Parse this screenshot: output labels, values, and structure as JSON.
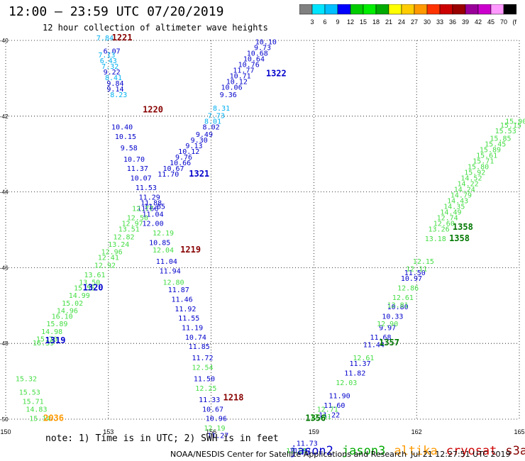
{
  "header": {
    "title": "12:00 – 23:59 UTC 07/20/2019",
    "subtitle": "12 hour collection of altimeter wave heights"
  },
  "colorbar": {
    "colors": [
      "#808080",
      "#00e5ff",
      "#00bfff",
      "#0000ff",
      "#00cc00",
      "#00ee00",
      "#00aa00",
      "#ffff00",
      "#ffcc00",
      "#ff9900",
      "#ff3300",
      "#cc0000",
      "#990000",
      "#990099",
      "#cc00cc",
      "#ff99ff",
      "#000000"
    ],
    "labels": [
      "3",
      "6",
      "9",
      "12",
      "15",
      "18",
      "21",
      "24",
      "27",
      "30",
      "33",
      "36",
      "39",
      "42",
      "45",
      "70",
      "(ft)"
    ]
  },
  "chart_data": {
    "type": "scatter",
    "title": "12:00 – 23:59 UTC 07/20/2019",
    "subtitle": "12 hour collection of altimeter wave heights",
    "xlim": [
      150,
      165
    ],
    "ylim": [
      -50,
      -40
    ],
    "xticks": [
      "150",
      "153",
      "156",
      "159",
      "162",
      "165"
    ],
    "yticks": [
      "-40",
      "-42",
      "-44",
      "-46",
      "-48",
      "-50"
    ],
    "grid": true,
    "series": [
      {
        "name": "jason2",
        "color": "#0000cc",
        "points": [
          {
            "x": 157.6,
            "y": -40.1,
            "v": "10.10"
          },
          {
            "x": 157.5,
            "y": -40.25,
            "v": "9.73"
          },
          {
            "x": 157.35,
            "y": -40.4,
            "v": "10.68"
          },
          {
            "x": 157.25,
            "y": -40.55,
            "v": "10.64"
          },
          {
            "x": 157.1,
            "y": -40.7,
            "v": "10.76"
          },
          {
            "x": 156.95,
            "y": -40.85,
            "v": "11.77"
          },
          {
            "x": 156.85,
            "y": -41.0,
            "v": "10.71"
          },
          {
            "x": 156.75,
            "y": -41.15,
            "v": "10.12"
          },
          {
            "x": 156.6,
            "y": -41.3,
            "v": "10.06"
          },
          {
            "x": 156.5,
            "y": -41.5,
            "v": "9.36"
          },
          {
            "x": 156.0,
            "y": -42.35,
            "v": "8.02"
          },
          {
            "x": 155.8,
            "y": -42.55,
            "v": "9.49"
          },
          {
            "x": 155.65,
            "y": -42.7,
            "v": "9.30"
          },
          {
            "x": 155.5,
            "y": -42.85,
            "v": "9.13"
          },
          {
            "x": 155.35,
            "y": -43.0,
            "v": "10.12"
          },
          {
            "x": 155.2,
            "y": -43.15,
            "v": "9.76"
          },
          {
            "x": 155.1,
            "y": -43.3,
            "v": "10.66"
          },
          {
            "x": 154.9,
            "y": -43.45,
            "v": "10.67"
          },
          {
            "x": 154.75,
            "y": -43.6,
            "v": "11.70"
          },
          {
            "x": 153.1,
            "y": -40.35,
            "v": "6.07"
          },
          {
            "x": 153.1,
            "y": -40.9,
            "v": "9.22"
          },
          {
            "x": 153.2,
            "y": -41.2,
            "v": "9.84"
          },
          {
            "x": 153.2,
            "y": -41.35,
            "v": "9.14"
          },
          {
            "x": 153.4,
            "y": -42.35,
            "v": "10.40"
          },
          {
            "x": 153.5,
            "y": -42.6,
            "v": "10.15"
          },
          {
            "x": 153.6,
            "y": -42.9,
            "v": "9.58"
          },
          {
            "x": 153.75,
            "y": -43.2,
            "v": "10.70"
          },
          {
            "x": 153.85,
            "y": -43.45,
            "v": "11.37"
          },
          {
            "x": 153.95,
            "y": -43.7,
            "v": "10.07"
          },
          {
            "x": 154.1,
            "y": -43.95,
            "v": "11.53"
          },
          {
            "x": 154.2,
            "y": -44.2,
            "v": "11.29"
          },
          {
            "x": 154.25,
            "y": -44.35,
            "v": "11.88"
          },
          {
            "x": 154.15,
            "y": -44.5,
            "v": "11.66"
          },
          {
            "x": 154.35,
            "y": -44.45,
            "v": "11.65"
          },
          {
            "x": 154.3,
            "y": -44.65,
            "v": "11.04"
          },
          {
            "x": 154.3,
            "y": -44.9,
            "v": "12.00"
          },
          {
            "x": 154.5,
            "y": -45.4,
            "v": "10.85"
          },
          {
            "x": 154.7,
            "y": -45.9,
            "v": "11.04"
          },
          {
            "x": 154.8,
            "y": -46.15,
            "v": "11.94"
          },
          {
            "x": 155.05,
            "y": -46.65,
            "v": "11.87"
          },
          {
            "x": 155.15,
            "y": -46.9,
            "v": "11.46"
          },
          {
            "x": 155.25,
            "y": -47.15,
            "v": "11.92"
          },
          {
            "x": 155.35,
            "y": -47.4,
            "v": "11.55"
          },
          {
            "x": 155.45,
            "y": -47.65,
            "v": "11.19"
          },
          {
            "x": 155.55,
            "y": -47.9,
            "v": "10.74"
          },
          {
            "x": 155.65,
            "y": -48.15,
            "v": "11.85"
          },
          {
            "x": 155.75,
            "y": -48.45,
            "v": "11.72"
          },
          {
            "x": 155.8,
            "y": -49.0,
            "v": "11.50"
          },
          {
            "x": 155.95,
            "y": -49.55,
            "v": "11.33"
          },
          {
            "x": 156.05,
            "y": -49.8,
            "v": "10.67"
          },
          {
            "x": 156.15,
            "y": -50.05,
            "v": "10.96"
          },
          {
            "x": 156.2,
            "y": -50.5,
            "v": "11.27"
          },
          {
            "x": 161.95,
            "y": -46.2,
            "v": "11.50"
          },
          {
            "x": 161.85,
            "y": -46.35,
            "v": "10.97"
          },
          {
            "x": 161.45,
            "y": -47.1,
            "v": "10.80"
          },
          {
            "x": 161.3,
            "y": -47.35,
            "v": "10.33"
          },
          {
            "x": 161.15,
            "y": -47.65,
            "v": "9.97"
          },
          {
            "x": 160.95,
            "y": -47.9,
            "v": "11.68"
          },
          {
            "x": 160.75,
            "y": -48.1,
            "v": "11.44"
          },
          {
            "x": 160.35,
            "y": -48.6,
            "v": "11.37"
          },
          {
            "x": 160.2,
            "y": -48.85,
            "v": "11.82"
          },
          {
            "x": 159.75,
            "y": -49.45,
            "v": "11.90"
          },
          {
            "x": 159.6,
            "y": -49.7,
            "v": "11.60"
          },
          {
            "x": 159.45,
            "y": -49.95,
            "v": "11.22"
          },
          {
            "x": 158.8,
            "y": -50.7,
            "v": "11.73"
          },
          {
            "x": 158.6,
            "y": -50.9,
            "v": "11.97"
          }
        ]
      },
      {
        "name": "jason2-light",
        "color": "#00b0f0",
        "points": [
          {
            "x": 152.9,
            "y": -40.0,
            "v": "7.84"
          },
          {
            "x": 152.95,
            "y": -40.45,
            "v": "7.13"
          },
          {
            "x": 153.0,
            "y": -40.6,
            "v": "6.43"
          },
          {
            "x": 153.05,
            "y": -40.75,
            "v": "7.32"
          },
          {
            "x": 153.15,
            "y": -41.05,
            "v": "8.41"
          },
          {
            "x": 153.3,
            "y": -41.5,
            "v": "8.23"
          },
          {
            "x": 156.3,
            "y": -41.85,
            "v": "8.31"
          },
          {
            "x": 156.15,
            "y": -42.05,
            "v": "7.73"
          },
          {
            "x": 156.05,
            "y": -42.2,
            "v": "8.01"
          }
        ]
      },
      {
        "name": "jason3",
        "color": "#44dd44",
        "points": [
          {
            "x": 154.0,
            "y": -44.5,
            "v": "12.77"
          },
          {
            "x": 153.85,
            "y": -44.75,
            "v": "12.50"
          },
          {
            "x": 153.7,
            "y": -44.9,
            "v": "12.97"
          },
          {
            "x": 153.6,
            "y": -45.05,
            "v": "13.51"
          },
          {
            "x": 153.45,
            "y": -45.25,
            "v": "12.82"
          },
          {
            "x": 153.3,
            "y": -45.45,
            "v": "13.24"
          },
          {
            "x": 153.1,
            "y": -45.65,
            "v": "12.96"
          },
          {
            "x": 153.0,
            "y": -45.8,
            "v": "12.41"
          },
          {
            "x": 152.9,
            "y": -46.0,
            "v": "12.92"
          },
          {
            "x": 152.6,
            "y": -46.25,
            "v": "13.61"
          },
          {
            "x": 152.45,
            "y": -46.45,
            "v": "13.50"
          },
          {
            "x": 152.3,
            "y": -46.6,
            "v": "15.55"
          },
          {
            "x": 152.15,
            "y": -46.8,
            "v": "14.99"
          },
          {
            "x": 151.95,
            "y": -47.0,
            "v": "15.02"
          },
          {
            "x": 151.8,
            "y": -47.2,
            "v": "14.96"
          },
          {
            "x": 151.65,
            "y": -47.35,
            "v": "16.10"
          },
          {
            "x": 151.5,
            "y": -47.55,
            "v": "15.89"
          },
          {
            "x": 151.35,
            "y": -47.75,
            "v": "14.98"
          },
          {
            "x": 151.2,
            "y": -47.95,
            "v": "15.70"
          },
          {
            "x": 151.1,
            "y": -48.05,
            "v": "16.39"
          },
          {
            "x": 150.6,
            "y": -49.0,
            "v": "15.32"
          },
          {
            "x": 150.7,
            "y": -49.35,
            "v": "15.53"
          },
          {
            "x": 150.8,
            "y": -49.6,
            "v": "15.71"
          },
          {
            "x": 150.9,
            "y": -49.8,
            "v": "14.83"
          },
          {
            "x": 151.0,
            "y": -50.05,
            "v": "15.14"
          },
          {
            "x": 154.6,
            "y": -45.15,
            "v": "12.19"
          },
          {
            "x": 154.6,
            "y": -45.6,
            "v": "12.04"
          },
          {
            "x": 154.9,
            "y": -46.45,
            "v": "12.80"
          },
          {
            "x": 155.75,
            "y": -48.7,
            "v": "12.54"
          },
          {
            "x": 155.85,
            "y": -49.25,
            "v": "12.25"
          },
          {
            "x": 156.1,
            "y": -50.3,
            "v": "12.19"
          },
          {
            "x": 162.2,
            "y": -45.9,
            "v": "12.15"
          },
          {
            "x": 162.0,
            "y": -46.1,
            "v": "12.11"
          },
          {
            "x": 161.75,
            "y": -46.6,
            "v": "12.86"
          },
          {
            "x": 161.6,
            "y": -46.85,
            "v": "12.61"
          },
          {
            "x": 161.45,
            "y": -47.05,
            "v": "12.81"
          },
          {
            "x": 161.15,
            "y": -47.55,
            "v": "12.90"
          },
          {
            "x": 160.45,
            "y": -48.45,
            "v": "12.61"
          },
          {
            "x": 159.95,
            "y": -49.1,
            "v": "12.03"
          },
          {
            "x": 159.4,
            "y": -49.8,
            "v": "12.71"
          },
          {
            "x": 159.2,
            "y": -50.0,
            "v": "12.91"
          },
          {
            "x": 158.5,
            "y": -50.9,
            "v": "12.05"
          },
          {
            "x": 162.55,
            "y": -45.3,
            "v": "13.18"
          },
          {
            "x": 162.65,
            "y": -45.05,
            "v": "13.26"
          },
          {
            "x": 162.8,
            "y": -44.9,
            "v": "12.60"
          },
          {
            "x": 162.9,
            "y": -44.75,
            "v": "12.74"
          },
          {
            "x": 163.0,
            "y": -44.6,
            "v": "14.49"
          },
          {
            "x": 163.1,
            "y": -44.45,
            "v": "14.35"
          },
          {
            "x": 163.2,
            "y": -44.3,
            "v": "14.43"
          },
          {
            "x": 163.3,
            "y": -44.15,
            "v": "14.79"
          },
          {
            "x": 163.4,
            "y": -44.0,
            "v": "14.24"
          },
          {
            "x": 163.5,
            "y": -43.85,
            "v": "14.22"
          },
          {
            "x": 163.6,
            "y": -43.7,
            "v": "14.52"
          },
          {
            "x": 163.7,
            "y": -43.55,
            "v": "15.92"
          },
          {
            "x": 163.8,
            "y": -43.4,
            "v": "15.80"
          },
          {
            "x": 163.95,
            "y": -43.25,
            "v": "15.71"
          },
          {
            "x": 164.05,
            "y": -43.1,
            "v": "15.61"
          },
          {
            "x": 164.15,
            "y": -42.95,
            "v": "15.89"
          },
          {
            "x": 164.3,
            "y": -42.8,
            "v": "15.45"
          },
          {
            "x": 164.45,
            "y": -42.65,
            "v": "15.85"
          },
          {
            "x": 164.6,
            "y": -42.45,
            "v": "15.53"
          },
          {
            "x": 164.75,
            "y": -42.3,
            "v": "15.15"
          },
          {
            "x": 164.9,
            "y": -42.2,
            "v": "15.90"
          }
        ]
      }
    ],
    "pass_labels": [
      {
        "x": 153.4,
        "y": -40.0,
        "v": "1221",
        "color": "#880000"
      },
      {
        "x": 154.3,
        "y": -41.9,
        "v": "1220",
        "color": "#880000"
      },
      {
        "x": 157.9,
        "y": -40.95,
        "v": "1322",
        "color": "#0000cc"
      },
      {
        "x": 155.65,
        "y": -43.6,
        "v": "1321",
        "color": "#0000cc"
      },
      {
        "x": 155.4,
        "y": -45.6,
        "v": "1219",
        "color": "#880000"
      },
      {
        "x": 152.55,
        "y": -46.6,
        "v": "1320",
        "color": "#0000cc"
      },
      {
        "x": 151.45,
        "y": -48.0,
        "v": "1319",
        "color": "#0000cc"
      },
      {
        "x": 156.65,
        "y": -49.5,
        "v": "1218",
        "color": "#880000"
      },
      {
        "x": 151.4,
        "y": -50.05,
        "v": "2036",
        "color": "#ff9900"
      },
      {
        "x": 159.05,
        "y": -50.05,
        "v": "1356",
        "color": "#007700"
      },
      {
        "x": 161.2,
        "y": -48.05,
        "v": "1357",
        "color": "#007700"
      },
      {
        "x": 163.35,
        "y": -45.0,
        "v": "1358",
        "color": "#007700"
      },
      {
        "x": 163.25,
        "y": -45.3,
        "v": "1358",
        "color": "#007700"
      }
    ]
  },
  "footer": {
    "note": "note: 1) Time is in UTC; 2) SWH is in feet",
    "satellites": [
      {
        "name": "jason2",
        "color": "#0000cc"
      },
      {
        "name": "jason3",
        "color": "#00aa00"
      },
      {
        "name": "altika",
        "color": "#ff9900"
      },
      {
        "name": "cryosat",
        "color": "#cc0000"
      },
      {
        "name": "s3a",
        "color": "#880000"
      }
    ],
    "credit": "NOAA/NESDIS Center for Satellite Applications and Research",
    "timestamp": "Jul 21 12:27:51 UTC 2019"
  }
}
